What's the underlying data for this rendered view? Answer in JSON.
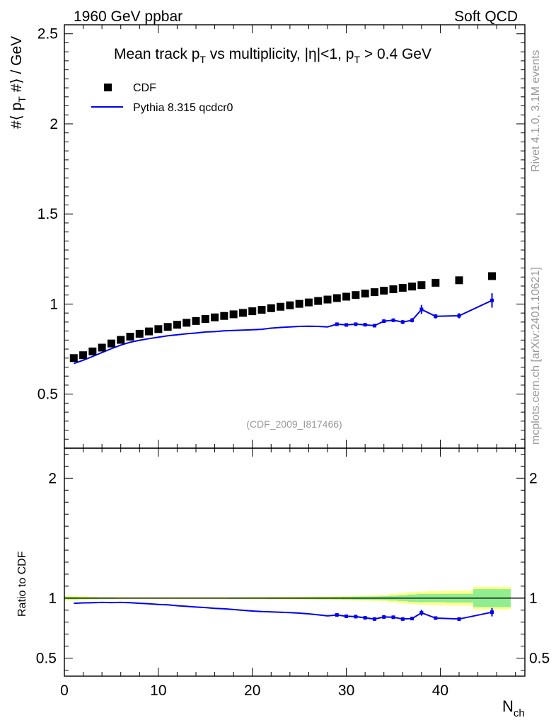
{
  "header": {
    "left": "1960 GeV ppbar",
    "right": "Soft QCD"
  },
  "side_labels": {
    "rivet": "Rivet 4.1.0,  3.1M events",
    "mcplots": "mcplots.cern.ch [arXiv:2401.10621]"
  },
  "chart_data": {
    "type": "scatter",
    "title": "Mean track p_T vs multiplicity, |η|<1, p_T > 0.4 GeV",
    "title_parts": {
      "a": "Mean track p",
      "sub1": "T",
      "b": " vs multiplicity, |η|<1, p",
      "sub2": "T",
      "c": " > 0.4 GeV"
    },
    "watermark": "(CDF_2009_I817466)",
    "ylabel_parts": {
      "a": "#⟨ p",
      "sub": "T",
      "b": " #⟩ / GeV"
    },
    "xlabel_parts": {
      "main": "N",
      "sub": "ch"
    },
    "ratio_ylabel": "Ratio to CDF",
    "xlim": [
      0,
      49
    ],
    "ylim": [
      0.2,
      2.55
    ],
    "ratio_ylim": [
      0.35,
      2.25
    ],
    "x_ticks": [
      0,
      10,
      20,
      30,
      40
    ],
    "x_tick_labels": [
      "0",
      "10",
      "20",
      "30",
      "40"
    ],
    "y_ticks": [
      0.5,
      1,
      1.5,
      2,
      2.5
    ],
    "y_tick_labels": [
      "0.5",
      "1",
      "1.5",
      "2",
      "2.5"
    ],
    "ratio_y_ticks": [
      0.5,
      1,
      2
    ],
    "ratio_y_tick_labels": [
      "0.5",
      "1",
      "2"
    ],
    "legend_position": "top-left",
    "series": [
      {
        "name": "CDF",
        "style": "markers",
        "color": "#000000",
        "x": [
          1,
          2,
          3,
          4,
          5,
          6,
          7,
          8,
          9,
          10,
          11,
          12,
          13,
          14,
          15,
          16,
          17,
          18,
          19,
          20,
          21,
          22,
          23,
          24,
          25,
          26,
          27,
          28,
          29,
          30,
          31,
          32,
          33,
          34,
          35,
          36,
          37,
          38,
          39.5,
          42,
          45.5
        ],
        "y": [
          0.7,
          0.716,
          0.737,
          0.758,
          0.781,
          0.801,
          0.819,
          0.835,
          0.848,
          0.861,
          0.873,
          0.885,
          0.896,
          0.906,
          0.917,
          0.926,
          0.934,
          0.943,
          0.951,
          0.96,
          0.968,
          0.977,
          0.985,
          0.993,
          1.001,
          1.009,
          1.017,
          1.025,
          1.033,
          1.041,
          1.05,
          1.058,
          1.066,
          1.074,
          1.082,
          1.09,
          1.097,
          1.105,
          1.118,
          1.132,
          1.155
        ]
      },
      {
        "name": "Pythia 8.315 qcdcr0",
        "style": "line",
        "color": "#0000ee",
        "x": [
          1,
          2,
          3,
          4,
          5,
          6,
          7,
          8,
          9,
          10,
          11,
          12,
          13,
          14,
          15,
          16,
          17,
          18,
          19,
          20,
          21,
          22,
          23,
          24,
          25,
          26,
          27,
          28,
          29,
          30,
          31,
          32,
          33,
          34,
          35,
          36,
          37,
          38,
          39.5,
          42,
          45.5
        ],
        "y": [
          0.67,
          0.688,
          0.709,
          0.731,
          0.752,
          0.772,
          0.788,
          0.799,
          0.808,
          0.816,
          0.824,
          0.829,
          0.835,
          0.839,
          0.845,
          0.847,
          0.851,
          0.853,
          0.855,
          0.857,
          0.86,
          0.866,
          0.87,
          0.873,
          0.876,
          0.877,
          0.876,
          0.873,
          0.888,
          0.884,
          0.888,
          0.885,
          0.88,
          0.905,
          0.91,
          0.9,
          0.91,
          0.97,
          0.932,
          0.935,
          1.02
        ],
        "yerr": [
          0,
          0,
          0,
          0,
          0,
          0,
          0,
          0,
          0,
          0,
          0,
          0,
          0,
          0,
          0,
          0,
          0,
          0,
          0,
          0,
          0,
          0,
          0,
          0,
          0,
          0,
          0,
          0,
          0.006,
          0.006,
          0.006,
          0.007,
          0.008,
          0.009,
          0.01,
          0.011,
          0.012,
          0.025,
          0.012,
          0.014,
          0.04
        ]
      }
    ],
    "ratio": {
      "x": [
        1,
        2,
        3,
        4,
        5,
        6,
        7,
        8,
        9,
        10,
        11,
        12,
        13,
        14,
        15,
        16,
        17,
        18,
        19,
        20,
        21,
        22,
        23,
        24,
        25,
        26,
        27,
        28,
        29,
        30,
        31,
        32,
        33,
        34,
        35,
        36,
        37,
        38,
        39.5,
        42,
        45.5
      ],
      "values": [
        0.957,
        0.961,
        0.962,
        0.964,
        0.963,
        0.964,
        0.962,
        0.957,
        0.953,
        0.948,
        0.944,
        0.937,
        0.932,
        0.926,
        0.922,
        0.915,
        0.911,
        0.905,
        0.899,
        0.893,
        0.888,
        0.886,
        0.883,
        0.879,
        0.875,
        0.869,
        0.861,
        0.852,
        0.86,
        0.849,
        0.846,
        0.836,
        0.826,
        0.843,
        0.841,
        0.826,
        0.83,
        0.878,
        0.834,
        0.826,
        0.883
      ],
      "yerr": [
        0,
        0,
        0,
        0,
        0,
        0,
        0,
        0,
        0,
        0,
        0,
        0,
        0,
        0,
        0,
        0,
        0,
        0,
        0,
        0,
        0,
        0,
        0,
        0,
        0,
        0,
        0,
        0,
        0.006,
        0.006,
        0.006,
        0.007,
        0.008,
        0.009,
        0.01,
        0.011,
        0.012,
        0.024,
        0.012,
        0.014,
        0.035
      ]
    },
    "ratio_bands": {
      "edges": [
        0,
        1.5,
        2.5,
        3.5,
        4.5,
        5.5,
        6.5,
        7.5,
        8.5,
        9.5,
        10.5,
        11.5,
        12.5,
        13.5,
        14.5,
        15.5,
        16.5,
        17.5,
        18.5,
        19.5,
        20.5,
        21.5,
        22.5,
        23.5,
        24.5,
        25.5,
        26.5,
        27.5,
        28.5,
        29.5,
        30.5,
        31.5,
        32.5,
        33.5,
        34.5,
        35.5,
        36.5,
        37.5,
        38.5,
        40.5,
        43.5,
        47.5
      ],
      "stat_half": [
        0.01,
        0.008,
        0.007,
        0.006,
        0.006,
        0.005,
        0.005,
        0.005,
        0.005,
        0.005,
        0.005,
        0.005,
        0.005,
        0.005,
        0.005,
        0.005,
        0.005,
        0.006,
        0.006,
        0.006,
        0.006,
        0.007,
        0.007,
        0.007,
        0.008,
        0.008,
        0.009,
        0.009,
        0.01,
        0.011,
        0.012,
        0.013,
        0.014,
        0.016,
        0.02,
        0.024,
        0.03,
        0.034,
        0.034,
        0.036,
        0.075
      ],
      "total_half": [
        0.02,
        0.016,
        0.012,
        0.01,
        0.009,
        0.009,
        0.008,
        0.008,
        0.008,
        0.008,
        0.008,
        0.008,
        0.008,
        0.008,
        0.008,
        0.008,
        0.009,
        0.009,
        0.009,
        0.01,
        0.01,
        0.011,
        0.011,
        0.012,
        0.012,
        0.013,
        0.014,
        0.015,
        0.016,
        0.018,
        0.02,
        0.022,
        0.024,
        0.027,
        0.036,
        0.044,
        0.05,
        0.055,
        0.058,
        0.062,
        0.095
      ],
      "stat_color": "#90ee90",
      "syst_color": "#ffff88"
    }
  }
}
